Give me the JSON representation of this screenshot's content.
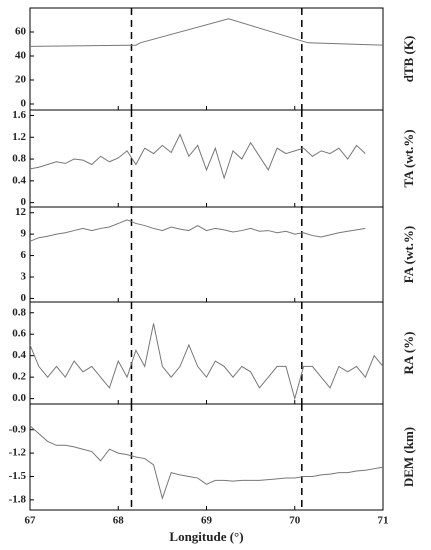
{
  "chart_data": [
    {
      "type": "line",
      "ylabel": "dTB (K)",
      "xlim": [
        67,
        71
      ],
      "xticks": [
        67,
        68,
        69,
        70,
        71
      ],
      "ylim": [
        -5,
        80
      ],
      "yticks": [
        0,
        20,
        40,
        60
      ],
      "vlines": [
        68.15,
        70.08
      ],
      "color": "#777777",
      "x": [
        67,
        68.2,
        68.25,
        69.25,
        70.15,
        71
      ],
      "values": [
        48,
        49,
        51,
        71,
        51,
        49
      ]
    },
    {
      "type": "line",
      "ylabel": "TA (wt.%)",
      "xlim": [
        67,
        71
      ],
      "xticks": [
        67,
        68,
        69,
        70,
        71
      ],
      "ylim": [
        -0.08,
        1.7
      ],
      "yticks": [
        0,
        0.4,
        0.8,
        1.2,
        1.6
      ],
      "vlines": [
        68.15,
        70.08
      ],
      "color": "#777777",
      "x": [
        67,
        67.1,
        67.2,
        67.3,
        67.4,
        67.5,
        67.6,
        67.7,
        67.8,
        67.9,
        68,
        68.1,
        68.2,
        68.3,
        68.4,
        68.5,
        68.6,
        68.7,
        68.8,
        68.9,
        69,
        69.1,
        69.2,
        69.3,
        69.4,
        69.5,
        69.6,
        69.7,
        69.8,
        69.9,
        70,
        70.1,
        70.2,
        70.3,
        70.4,
        70.5,
        70.6,
        70.7,
        70.8
      ],
      "values": [
        0.62,
        0.65,
        0.7,
        0.75,
        0.72,
        0.8,
        0.78,
        0.7,
        0.85,
        0.75,
        0.82,
        0.95,
        0.7,
        1.0,
        0.9,
        1.05,
        0.92,
        1.25,
        0.85,
        1.05,
        0.6,
        1.0,
        0.45,
        0.95,
        0.8,
        1.1,
        0.85,
        0.6,
        1.0,
        0.9,
        0.95,
        1.0,
        0.85,
        0.95,
        0.9,
        1.0,
        0.8,
        1.05,
        0.9
      ]
    },
    {
      "type": "line",
      "ylabel": "FA (wt.%)",
      "xlim": [
        67,
        71
      ],
      "xticks": [
        67,
        68,
        69,
        70,
        71
      ],
      "ylim": [
        -0.5,
        12.8
      ],
      "yticks": [
        0,
        3,
        6,
        9,
        12
      ],
      "vlines": [
        68.15,
        70.08
      ],
      "color": "#777777",
      "x": [
        67,
        67.1,
        67.2,
        67.3,
        67.4,
        67.5,
        67.6,
        67.7,
        67.8,
        67.9,
        68,
        68.1,
        68.2,
        68.3,
        68.4,
        68.5,
        68.6,
        68.7,
        68.8,
        68.9,
        69,
        69.1,
        69.2,
        69.3,
        69.4,
        69.5,
        69.6,
        69.7,
        69.8,
        69.9,
        70,
        70.1,
        70.2,
        70.3,
        70.4,
        70.5,
        70.6,
        70.7,
        70.8
      ],
      "values": [
        8,
        8.5,
        8.7,
        9,
        9.2,
        9.5,
        9.8,
        9.5,
        9.8,
        10,
        10.5,
        11,
        10.5,
        10.2,
        9.8,
        9.5,
        10,
        9.7,
        9.5,
        10.2,
        9.5,
        9.8,
        9.6,
        9.3,
        9.5,
        9.8,
        9.4,
        9.5,
        9.2,
        9.4,
        9,
        9.2,
        8.8,
        8.6,
        8.9,
        9.2,
        9.4,
        9.6,
        9.8
      ]
    },
    {
      "type": "line",
      "ylabel": "RA (%)",
      "xlim": [
        67,
        71
      ],
      "xticks": [
        67,
        68,
        69,
        70,
        71
      ],
      "ylim": [
        -0.05,
        0.9
      ],
      "yticks": [
        {
          "value": 0,
          "label": "0.0"
        },
        0.2,
        0.4,
        0.6,
        0.8
      ],
      "vlines": [
        68.15,
        70.08
      ],
      "color": "#777777",
      "x": [
        67,
        67.1,
        67.2,
        67.3,
        67.4,
        67.5,
        67.6,
        67.7,
        67.8,
        67.9,
        68,
        68.1,
        68.2,
        68.3,
        68.4,
        68.5,
        68.6,
        68.7,
        68.8,
        68.9,
        69,
        69.1,
        69.2,
        69.3,
        69.4,
        69.5,
        69.6,
        69.7,
        69.8,
        69.9,
        70,
        70.1,
        70.2,
        70.3,
        70.4,
        70.5,
        70.6,
        70.7,
        70.8,
        70.9,
        71
      ],
      "values": [
        0.5,
        0.3,
        0.2,
        0.3,
        0.2,
        0.35,
        0.25,
        0.3,
        0.2,
        0.1,
        0.35,
        0.2,
        0.45,
        0.3,
        0.7,
        0.3,
        0.2,
        0.3,
        0.5,
        0.3,
        0.2,
        0.35,
        0.3,
        0.2,
        0.3,
        0.25,
        0.1,
        0.2,
        0.3,
        0.3,
        0.0,
        0.3,
        0.3,
        0.2,
        0.1,
        0.3,
        0.25,
        0.3,
        0.2,
        0.4,
        0.3
      ]
    },
    {
      "type": "line",
      "ylabel": "DEM (km)",
      "xlabel": "Longitude (°)",
      "xlim": [
        67,
        71
      ],
      "xticks": [
        67,
        68,
        69,
        70,
        71
      ],
      "ylim": [
        -1.93,
        -0.57
      ],
      "yticks": [
        -0.9,
        -1.2,
        -1.5,
        -1.8
      ],
      "vlines": [
        68.15,
        70.08
      ],
      "color": "#777777",
      "x": [
        67,
        67.1,
        67.2,
        67.3,
        67.4,
        67.5,
        67.6,
        67.7,
        67.8,
        67.9,
        68,
        68.1,
        68.2,
        68.3,
        68.4,
        68.5,
        68.6,
        68.7,
        68.8,
        68.9,
        69,
        69.1,
        69.2,
        69.3,
        69.4,
        69.5,
        69.6,
        69.7,
        69.8,
        69.9,
        70,
        70.1,
        70.2,
        70.3,
        70.4,
        70.5,
        70.6,
        70.7,
        70.8,
        70.9,
        71
      ],
      "values": [
        -0.85,
        -0.95,
        -1.05,
        -1.1,
        -1.1,
        -1.12,
        -1.15,
        -1.18,
        -1.3,
        -1.15,
        -1.2,
        -1.22,
        -1.25,
        -1.27,
        -1.35,
        -1.78,
        -1.45,
        -1.48,
        -1.5,
        -1.52,
        -1.6,
        -1.55,
        -1.55,
        -1.56,
        -1.55,
        -1.55,
        -1.55,
        -1.54,
        -1.53,
        -1.52,
        -1.52,
        -1.5,
        -1.5,
        -1.48,
        -1.47,
        -1.45,
        -1.45,
        -1.43,
        -1.42,
        -1.4,
        -1.38
      ]
    }
  ]
}
